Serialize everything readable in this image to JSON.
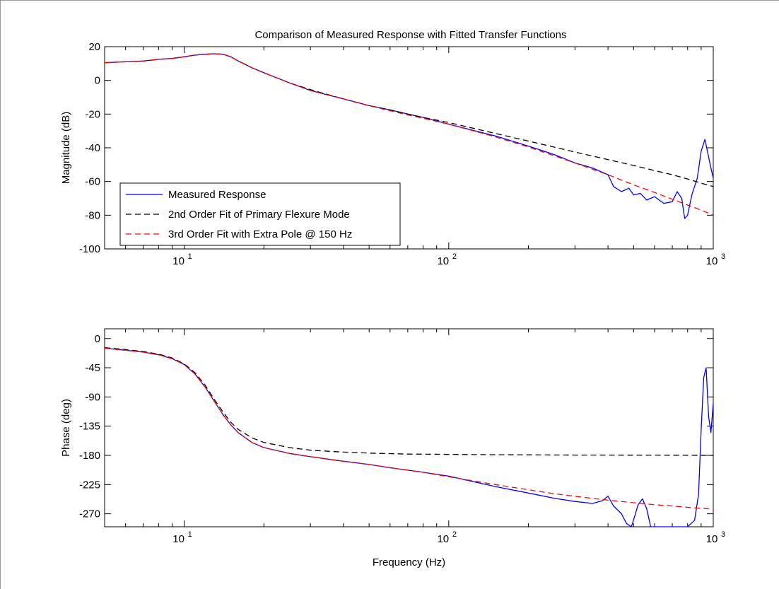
{
  "chart_data": [
    {
      "type": "line",
      "title": "Comparison of Measured Response with Fitted Transfer Functions",
      "xlabel": "",
      "ylabel": "Magnitude (dB)",
      "xscale": "log",
      "xlim": [
        5,
        1000
      ],
      "ylim": [
        -100,
        20
      ],
      "xticks": [
        10,
        100,
        1000
      ],
      "xtick_labels": [
        {
          "base": "10",
          "exp": "1"
        },
        {
          "base": "10",
          "exp": "2"
        },
        {
          "base": "10",
          "exp": "3"
        }
      ],
      "yticks": [
        20,
        0,
        -20,
        -40,
        -60,
        -80,
        -100
      ],
      "ytick_labels": [
        "20",
        "0",
        "-20",
        "-40",
        "-60",
        "-80",
        "-100"
      ],
      "grid": false,
      "legend_position": "lower-left",
      "series": [
        {
          "name": "Measured Response",
          "color": "#0000ff",
          "style": "solid",
          "x": [
            5,
            6,
            7,
            8,
            9,
            10,
            11,
            12,
            13,
            14,
            15,
            16,
            17,
            18,
            20,
            25,
            30,
            40,
            50,
            60,
            70,
            80,
            100,
            150,
            200,
            250,
            300,
            350,
            400,
            420,
            450,
            480,
            500,
            530,
            560,
            600,
            650,
            700,
            730,
            760,
            780,
            800,
            830,
            870,
            900,
            930,
            950,
            980,
            1000
          ],
          "y": [
            10.5,
            11,
            11.5,
            12.5,
            13,
            14,
            15,
            15.5,
            15.8,
            15.5,
            14,
            11.5,
            9.5,
            7.5,
            4.5,
            -1.5,
            -6,
            -11,
            -15,
            -17.5,
            -20,
            -22,
            -26,
            -33,
            -39,
            -44,
            -49,
            -52,
            -56,
            -63,
            -66,
            -64,
            -68,
            -67,
            -71,
            -69,
            -73,
            -72,
            -66,
            -70,
            -82,
            -80,
            -68,
            -58,
            -42,
            -35,
            -42,
            -52,
            -58
          ]
        },
        {
          "name": "2nd Order Fit of Primary Flexure Mode",
          "color": "#000000",
          "style": "dashed",
          "x": [
            5,
            6,
            7,
            8,
            9,
            10,
            11,
            12,
            13,
            14,
            15,
            16,
            17,
            18,
            20,
            25,
            30,
            40,
            50,
            60,
            70,
            80,
            100,
            150,
            200,
            300,
            400,
            500,
            600,
            700,
            800,
            900,
            1000
          ],
          "y": [
            10.5,
            11,
            11.5,
            12.5,
            13,
            14,
            15,
            15.5,
            15.8,
            15.5,
            14,
            11.5,
            9.5,
            7.5,
            4.5,
            -1.5,
            -5.5,
            -11,
            -15,
            -17.5,
            -20,
            -22,
            -25,
            -31.5,
            -36,
            -42.5,
            -47,
            -50.5,
            -53.5,
            -56,
            -58.5,
            -61,
            -63
          ]
        },
        {
          "name": "3rd Order Fit with Extra Pole @ 150 Hz",
          "color": "#ff0000",
          "style": "dashed",
          "x": [
            5,
            6,
            7,
            8,
            9,
            10,
            11,
            12,
            13,
            14,
            15,
            16,
            17,
            18,
            20,
            25,
            30,
            40,
            50,
            60,
            70,
            80,
            100,
            150,
            200,
            300,
            400,
            500,
            600,
            700,
            800,
            900,
            1000
          ],
          "y": [
            10.5,
            11,
            11.5,
            12.5,
            13,
            14,
            15,
            15.5,
            15.8,
            15.5,
            14,
            11.5,
            9.5,
            7.5,
            4.5,
            -1.5,
            -6,
            -11,
            -15,
            -18,
            -20.5,
            -22.5,
            -26,
            -33.5,
            -39.5,
            -49,
            -56,
            -62,
            -66.5,
            -70.5,
            -74,
            -77,
            -80
          ]
        }
      ]
    },
    {
      "type": "line",
      "title": "",
      "xlabel": "Frequency (Hz)",
      "ylabel": "Phase (deg)",
      "xscale": "log",
      "xlim": [
        5,
        1000
      ],
      "ylim": [
        -290,
        15
      ],
      "xticks": [
        10,
        100,
        1000
      ],
      "xtick_labels": [
        {
          "base": "10",
          "exp": "1"
        },
        {
          "base": "10",
          "exp": "2"
        },
        {
          "base": "10",
          "exp": "3"
        }
      ],
      "yticks": [
        0,
        -45,
        -90,
        -135,
        -180,
        -225,
        -270
      ],
      "ytick_labels": [
        "0",
        "-45",
        "-90",
        "-135",
        "-180",
        "-225",
        "-270"
      ],
      "grid": false,
      "series": [
        {
          "name": "Measured Response",
          "color": "#0000ff",
          "style": "solid",
          "x": [
            5,
            6,
            7,
            8,
            9,
            10,
            11,
            12,
            13,
            14,
            15,
            16,
            18,
            20,
            25,
            30,
            40,
            50,
            60,
            80,
            100,
            150,
            200,
            250,
            300,
            350,
            380,
            400,
            420,
            450,
            470,
            490,
            500,
            520,
            540,
            560,
            580,
            600,
            650,
            700,
            800,
            850,
            880,
            900,
            920,
            940,
            960,
            980,
            1000
          ],
          "y": [
            -15,
            -18,
            -21,
            -25,
            -31,
            -40,
            -55,
            -75,
            -97,
            -117,
            -133,
            -145,
            -160,
            -168,
            -177,
            -182,
            -189,
            -194,
            -199,
            -206,
            -212,
            -228,
            -238,
            -246,
            -251,
            -254,
            -250,
            -243,
            -258,
            -270,
            -285,
            -290,
            -279,
            -256,
            -247,
            -262,
            -290,
            -290,
            -290,
            -290,
            -290,
            -280,
            -240,
            -140,
            -60,
            -45,
            -120,
            -145,
            -100
          ]
        },
        {
          "name": "2nd Order Fit of Primary Flexure Mode",
          "color": "#000000",
          "style": "dashed",
          "x": [
            5,
            6,
            7,
            8,
            9,
            10,
            11,
            12,
            13,
            14,
            15,
            16,
            18,
            20,
            25,
            30,
            40,
            50,
            70,
            100,
            150,
            200,
            300,
            500,
            700,
            1000
          ],
          "y": [
            -14,
            -17,
            -20,
            -24,
            -30,
            -39,
            -53,
            -72,
            -94,
            -113,
            -129,
            -140,
            -153,
            -160,
            -168,
            -172,
            -175,
            -176.5,
            -178,
            -178.5,
            -179,
            -179.2,
            -179.5,
            -179.7,
            -179.8,
            -180
          ]
        },
        {
          "name": "3rd Order Fit with Extra Pole @ 150 Hz",
          "color": "#ff0000",
          "style": "dashed",
          "x": [
            5,
            6,
            7,
            8,
            9,
            10,
            11,
            12,
            13,
            14,
            15,
            16,
            18,
            20,
            25,
            30,
            40,
            50,
            60,
            80,
            100,
            150,
            200,
            250,
            300,
            400,
            500,
            600,
            700,
            800,
            900,
            1000
          ],
          "y": [
            -15,
            -18,
            -21,
            -25,
            -31,
            -40,
            -55,
            -75,
            -97,
            -117,
            -133,
            -145,
            -160,
            -168,
            -177,
            -182,
            -189,
            -194,
            -199,
            -206,
            -213,
            -225,
            -233,
            -239,
            -243,
            -249,
            -253,
            -256,
            -258,
            -260,
            -261.5,
            -263
          ]
        }
      ]
    }
  ]
}
